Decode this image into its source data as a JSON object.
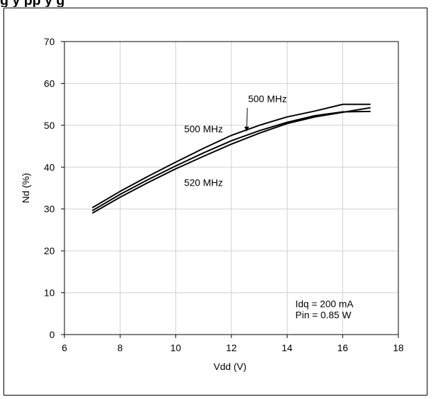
{
  "page_title_fragment": "g                                   y    pp y    g",
  "chart_data": {
    "type": "line",
    "xlabel": "Vdd (V)",
    "ylabel": "Nd (%)",
    "xlim": [
      6,
      18
    ],
    "ylim": [
      0,
      70
    ],
    "xticks": [
      6,
      8,
      10,
      12,
      14,
      16,
      18
    ],
    "yticks": [
      0,
      10,
      20,
      30,
      40,
      50,
      60,
      70
    ],
    "grid": true,
    "series": [
      {
        "name": "500 MHz",
        "x": [
          7,
          8,
          9,
          10,
          11,
          12,
          13,
          14,
          15,
          16,
          17
        ],
        "y": [
          30.3,
          34.2,
          37.8,
          41.2,
          44.5,
          47.6,
          50.0,
          52.0,
          53.4,
          55.0,
          55.0
        ]
      },
      {
        "name": "500 MHz",
        "x": [
          7,
          8,
          9,
          10,
          11,
          12,
          13,
          14,
          15,
          16,
          17
        ],
        "y": [
          29.6,
          33.5,
          37.0,
          40.3,
          43.4,
          46.3,
          48.7,
          50.7,
          52.3,
          53.2,
          53.3
        ]
      },
      {
        "name": "520 MHz",
        "x": [
          7,
          8,
          9,
          10,
          11,
          12,
          13,
          14,
          15,
          16,
          17
        ],
        "y": [
          29.0,
          32.8,
          36.3,
          39.6,
          42.6,
          45.5,
          48.1,
          50.4,
          52.0,
          53.1,
          54.2
        ]
      }
    ],
    "annotations": [
      {
        "text": "500 MHz",
        "x": 12.6,
        "y": 55.5,
        "arrow_to": [
          12.55,
          48.5
        ]
      },
      {
        "text": "500 MHz",
        "x": 10.3,
        "y": 48.3
      },
      {
        "text": "520 MHz",
        "x": 10.3,
        "y": 35.5
      },
      {
        "text": "Idq = 200 mA",
        "x": 14.3,
        "y": 6.5
      },
      {
        "text": "Pin = 0.85 W",
        "x": 14.3,
        "y": 3.9
      }
    ]
  }
}
